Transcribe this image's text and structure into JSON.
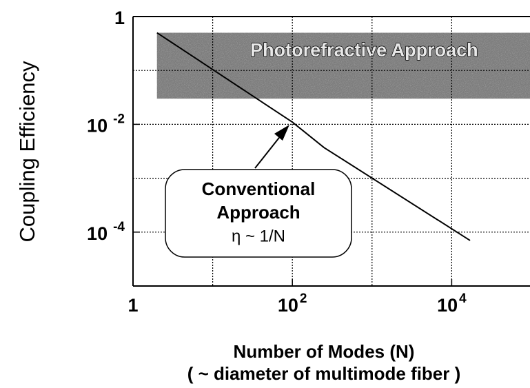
{
  "chart_data": {
    "type": "line",
    "ylabel": "Coupling Efficiency",
    "xlabel": [
      "Number of Modes (N)",
      "( ~ diameter of multimode fiber )"
    ],
    "xscale": "log",
    "yscale": "log",
    "xlim": [
      1,
      100000
    ],
    "ylim": [
      1e-05,
      1
    ],
    "xticks": [
      1,
      {
        "value": 100,
        "label": "102"
      },
      {
        "value": 10000,
        "label": "104"
      }
    ],
    "yticks": [
      1,
      {
        "value": 0.01,
        "label": "10-2"
      },
      {
        "value": 0.0001,
        "label": "10-4"
      }
    ],
    "minor_xticks": [
      10,
      1000
    ],
    "minor_yticks": [
      0.1,
      0.001
    ],
    "grid": true,
    "series": [
      {
        "name": "Conventional Approach",
        "color": "#000000",
        "x": [
          2,
          100,
          250,
          17000
        ],
        "values": [
          0.5,
          0.011,
          0.0037,
          7e-05
        ]
      }
    ],
    "band": {
      "label": "Photorefractive Approach",
      "x": [
        2,
        100000
      ],
      "y": [
        0.03,
        0.5
      ]
    },
    "annotations": [
      "Conventional",
      "Approach",
      "η ~ 1/N"
    ]
  }
}
